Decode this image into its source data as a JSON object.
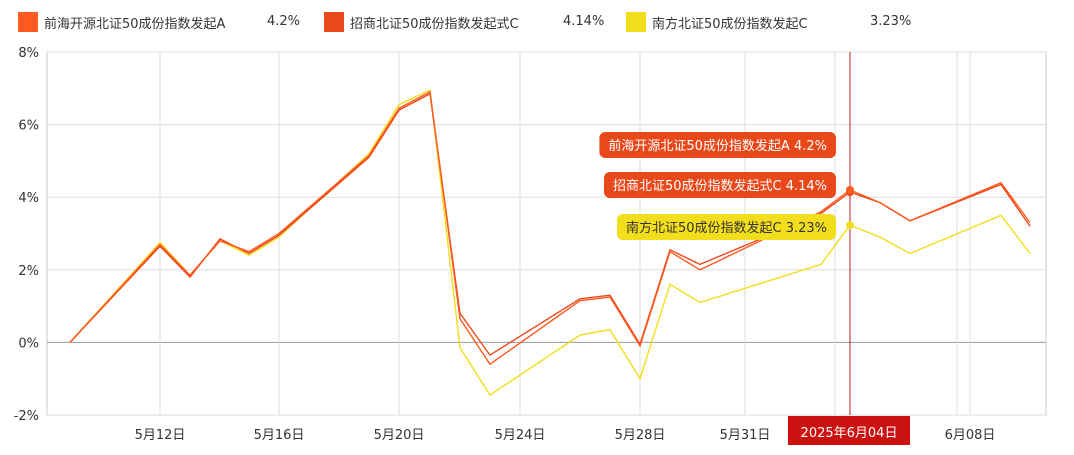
{
  "chart_data": {
    "type": "line",
    "title": "",
    "xlabel": "",
    "ylabel": "",
    "x_tick_labels": [
      "5月12日",
      "5月16日",
      "5月20日",
      "5月24日",
      "5月28日",
      "5月31日",
      "6月08日"
    ],
    "highlight_label": "2025年6月04日",
    "ylim": [
      -2,
      8
    ],
    "y_ticks": [
      -2,
      0,
      2,
      4,
      6,
      8
    ],
    "y_tick_labels": [
      "-2%",
      "0%",
      "2%",
      "4%",
      "6%",
      "8%"
    ],
    "grid": true,
    "legend_position": "top",
    "dates": [
      "05-07",
      "05-12",
      "05-13",
      "05-14",
      "05-15",
      "05-16",
      "05-19",
      "05-20",
      "05-21",
      "05-22",
      "05-23",
      "05-26",
      "05-27",
      "05-28",
      "05-29",
      "05-30",
      "06-03",
      "06-04",
      "06-05",
      "06-06",
      "06-09",
      "06-10"
    ],
    "series": [
      {
        "name": "前海开源北证50成份指数发起A",
        "last_value": "4.2%",
        "color": "#ff5a1f",
        "values": [
          0,
          2.7,
          1.85,
          2.8,
          2.5,
          3.0,
          5.15,
          6.45,
          6.9,
          0.65,
          -0.6,
          1.15,
          1.25,
          -0.1,
          2.5,
          2.0,
          3.6,
          4.2,
          3.85,
          3.35,
          4.4,
          3.3
        ]
      },
      {
        "name": "招商北证50成份指数发起式C",
        "last_value": "4.14%",
        "color": "#e8481a",
        "values": [
          0,
          2.65,
          1.8,
          2.85,
          2.45,
          2.95,
          5.1,
          6.4,
          6.85,
          0.8,
          -0.35,
          1.2,
          1.3,
          -0.05,
          2.55,
          2.15,
          3.55,
          4.14,
          3.85,
          3.35,
          4.35,
          3.2
        ]
      },
      {
        "name": "南方北证50成份指数发起C",
        "last_value": "3.23%",
        "color": "#f2de1c",
        "values": [
          0,
          2.75,
          1.85,
          2.8,
          2.4,
          2.9,
          5.2,
          6.55,
          6.95,
          -0.15,
          -1.45,
          0.2,
          0.35,
          -1.0,
          1.6,
          1.1,
          2.15,
          3.23,
          2.9,
          2.45,
          3.5,
          2.45
        ]
      }
    ],
    "tooltip": [
      {
        "text": "前海开源北证50成份指数发起A 4.2%",
        "bg": "#e8481a",
        "fg": "#ffffff"
      },
      {
        "text": "招商北证50成份指数发起式C 4.14%",
        "bg": "#e8481a",
        "fg": "#ffffff"
      },
      {
        "text": "南方北证50成份指数发起C 3.23%",
        "bg": "#f2de1c",
        "fg": "#333333"
      }
    ],
    "hover_index": 17
  }
}
